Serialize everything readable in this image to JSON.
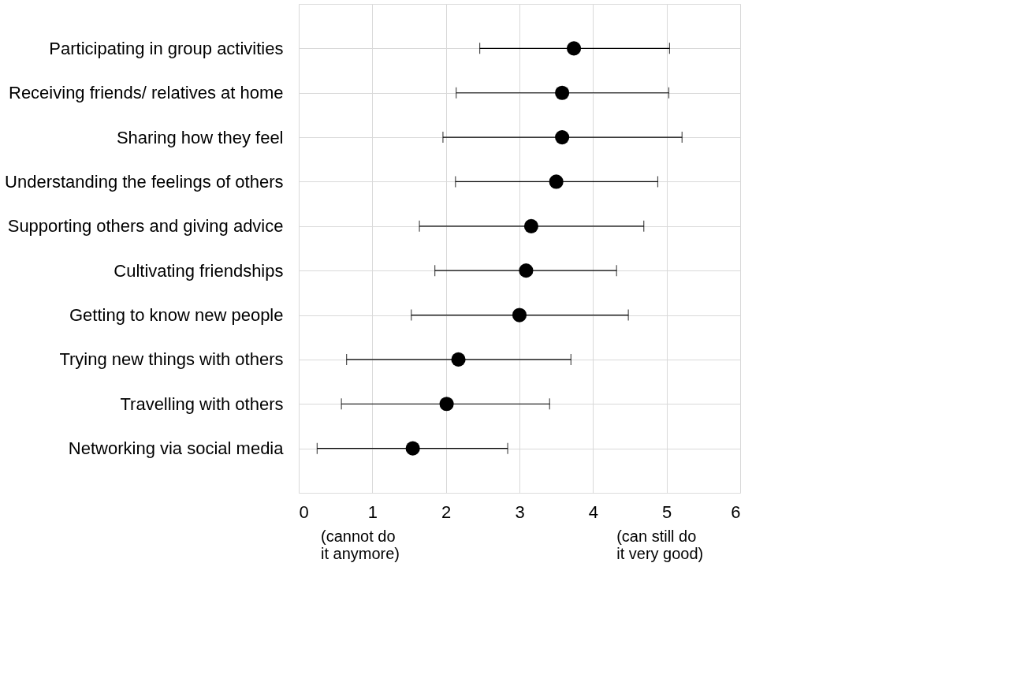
{
  "chart_data": {
    "type": "scatter",
    "orientation": "horizontal",
    "categories": [
      "Participating in group activities",
      "Receiving friends/ relatives at home",
      "Sharing how they feel",
      "Understanding the feelings of others",
      "Supporting others and giving advice",
      "Cultivating friendships",
      "Getting to know new people",
      "Trying new things with others",
      "Travelling with others",
      "Networking via social media"
    ],
    "series": [
      {
        "color": "#000000",
        "values": [
          3.74,
          3.58,
          3.58,
          3.5,
          3.16,
          3.09,
          3.0,
          2.17,
          2.01,
          1.55
        ],
        "errors": [
          [
            2.46,
            5.04
          ],
          [
            2.14,
            5.03
          ],
          [
            1.96,
            5.21
          ],
          [
            2.13,
            4.88
          ],
          [
            1.64,
            4.69
          ],
          [
            1.85,
            4.32
          ],
          [
            1.53,
            4.48
          ],
          [
            0.65,
            3.7
          ],
          [
            0.58,
            3.41
          ],
          [
            0.25,
            2.84
          ]
        ]
      }
    ],
    "xlim": [
      0,
      6
    ],
    "xticks": [
      0,
      1,
      2,
      3,
      4,
      5,
      6
    ],
    "grid": true,
    "marker": "circle",
    "annotations": [
      "(cannot do\nit anymore)",
      "(can still do\nit very good)"
    ]
  }
}
